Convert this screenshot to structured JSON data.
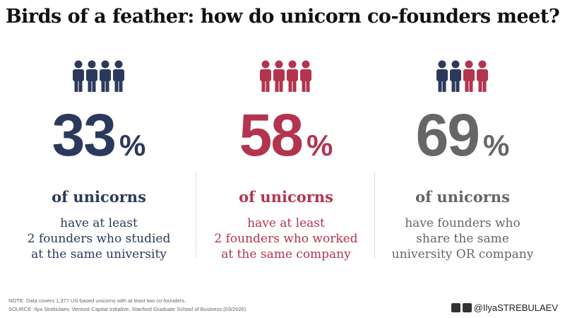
{
  "title": "Birds of a feather: how do unicorn co-founders meet?",
  "stats": [
    {
      "value": 33,
      "unit": "%",
      "subtitle": "of unicorns",
      "description": [
        "have at least",
        "2 founders who studied",
        "at the same university"
      ],
      "color": "#2b3a5c",
      "icon_colors": [
        "#2b3a5c",
        "#2b3a5c",
        "#2b3a5c",
        "#2b3a5c"
      ]
    },
    {
      "value": 58,
      "unit": "%",
      "subtitle": "of unicorns",
      "description": [
        "have at least",
        "2 founders who worked",
        "at the same company"
      ],
      "color": "#b3344f",
      "icon_colors": [
        "#b3344f",
        "#b3344f",
        "#b3344f",
        "#b3344f"
      ]
    },
    {
      "value": 69,
      "unit": "%",
      "subtitle": "of unicorns",
      "description": [
        "have founders who",
        "share the same",
        "university OR company"
      ],
      "color": "#666666",
      "icon_colors": [
        "#2b3a5c",
        "#2b3a5c",
        "#b3344f",
        "#b3344f"
      ]
    }
  ],
  "note": "NOTE: Data covers 1,377 US-based unicorns with at least two co-founders.",
  "source": "SOURCE: Ilya Strebulaev, Venture Capital Initiative, Stanford Graduate School of Business (03/2026)",
  "handle": "@IlyaSTREBULAEV"
}
